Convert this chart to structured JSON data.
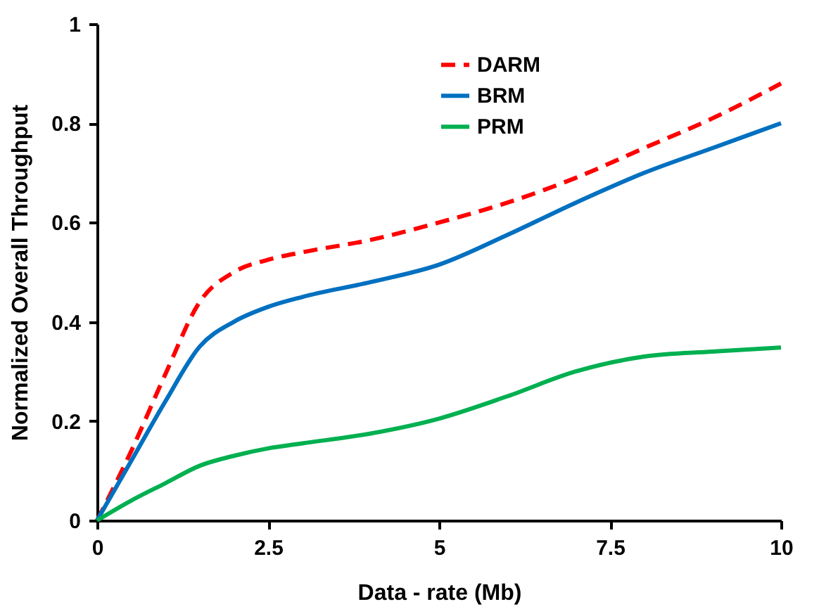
{
  "chart_data": {
    "type": "line",
    "xlabel": "Data - rate (Mb)",
    "ylabel": "Normalized Overall Throughput",
    "x": [
      0,
      0.5,
      1,
      1.5,
      2,
      2.5,
      3,
      4,
      5,
      6,
      7,
      8,
      9,
      10
    ],
    "series": [
      {
        "name": "DARM",
        "color": "#ff0000",
        "line_style": "dashed",
        "values": [
          0,
          0.14,
          0.295,
          0.44,
          0.5,
          0.525,
          0.54,
          0.565,
          0.6,
          0.64,
          0.69,
          0.75,
          0.81,
          0.88
        ]
      },
      {
        "name": "BRM",
        "color": "#0070c0",
        "line_style": "solid",
        "values": [
          0,
          0.12,
          0.24,
          0.35,
          0.4,
          0.43,
          0.45,
          0.48,
          0.515,
          0.575,
          0.64,
          0.7,
          0.75,
          0.8
        ]
      },
      {
        "name": "PRM",
        "color": "#00b050",
        "line_style": "solid",
        "values": [
          0,
          0.04,
          0.075,
          0.11,
          0.13,
          0.145,
          0.155,
          0.175,
          0.205,
          0.25,
          0.3,
          0.33,
          0.34,
          0.348
        ]
      }
    ],
    "xlim": [
      0,
      10
    ],
    "xticks": [
      0,
      2.5,
      5,
      7.5,
      10
    ],
    "ylim": [
      0,
      1
    ],
    "yticks": [
      0,
      0.2,
      0.4,
      0.6,
      0.8,
      1
    ],
    "grid": false,
    "legend": "top right",
    "marker": "none"
  }
}
